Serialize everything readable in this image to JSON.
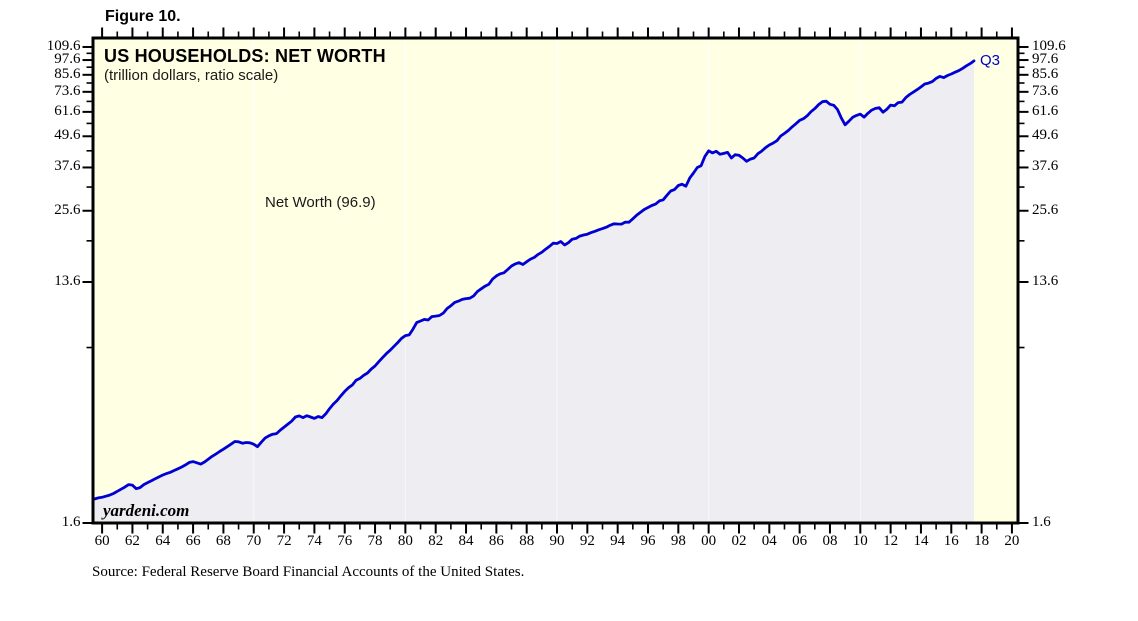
{
  "figure_label": "Figure 10.",
  "source": "Source: Federal Reserve Board Financial Accounts of the United States.",
  "chart": {
    "title": "US HOUSEHOLDS: NET WORTH",
    "subtitle": "(trillion dollars, ratio scale)",
    "annotation": "Net Worth (96.9)",
    "end_label": "Q3",
    "watermark": "yardeni.com"
  },
  "colors": {
    "plot_background": "#FFFFE3",
    "area_fill": "#EEEEF2",
    "line": "#0000D4",
    "frame": "#000000",
    "gridline": "#FFFFFF",
    "end_label_text": "#0000C8"
  },
  "chart_data": {
    "type": "line",
    "title": "US HOUSEHOLDS: NET WORTH",
    "subtitle": "(trillion dollars, ratio scale)",
    "unit": "trillion dollars",
    "scale": "ratio (log)",
    "latest_point": {
      "period": "Q3",
      "value": 96.9
    },
    "shaded_under_curve": true,
    "y_axis": {
      "scale": "log",
      "range": [
        1.6,
        118.7
      ],
      "ticks_major": [
        1.6,
        13.6,
        25.6,
        37.6,
        49.6,
        61.6,
        73.6,
        85.6,
        97.6,
        109.6
      ],
      "ticks_minor": [
        7.6,
        19.6,
        31.6,
        43.6,
        55.6,
        67.6,
        79.6,
        91.6,
        103.6
      ],
      "tick_labels": [
        "1.6",
        "13.6",
        "25.6",
        "37.6",
        "49.6",
        "61.6",
        "73.6",
        "85.6",
        "97.6",
        "109.6"
      ]
    },
    "x_axis": {
      "range": [
        1959.4,
        2020.4
      ],
      "labeled_year_start": 1960,
      "labeled_year_step": 2,
      "labels": [
        "60",
        "62",
        "64",
        "66",
        "68",
        "70",
        "72",
        "74",
        "76",
        "78",
        "80",
        "82",
        "84",
        "86",
        "88",
        "90",
        "92",
        "94",
        "96",
        "98",
        "00",
        "02",
        "04",
        "06",
        "08",
        "10",
        "12",
        "14",
        "16",
        "18",
        "20"
      ]
    },
    "gridlines_vertical_years": [
      1970,
      1980,
      1990,
      2000,
      2010
    ],
    "series": [
      {
        "name": "Net Worth",
        "x_start": 1959.5,
        "x_step": 0.25,
        "values": [
          1.98,
          2.0,
          2.01,
          2.03,
          2.05,
          2.08,
          2.12,
          2.16,
          2.2,
          2.25,
          2.24,
          2.17,
          2.19,
          2.25,
          2.29,
          2.33,
          2.37,
          2.41,
          2.45,
          2.48,
          2.51,
          2.55,
          2.59,
          2.63,
          2.68,
          2.74,
          2.76,
          2.73,
          2.7,
          2.75,
          2.82,
          2.89,
          2.95,
          3.02,
          3.08,
          3.15,
          3.22,
          3.3,
          3.29,
          3.25,
          3.27,
          3.26,
          3.22,
          3.15,
          3.28,
          3.4,
          3.47,
          3.52,
          3.54,
          3.65,
          3.75,
          3.85,
          3.95,
          4.1,
          4.14,
          4.08,
          4.15,
          4.1,
          4.05,
          4.12,
          4.08,
          4.22,
          4.42,
          4.6,
          4.75,
          4.95,
          5.15,
          5.32,
          5.45,
          5.68,
          5.78,
          5.94,
          6.06,
          6.28,
          6.45,
          6.7,
          6.95,
          7.2,
          7.42,
          7.68,
          7.95,
          8.25,
          8.45,
          8.5,
          8.95,
          9.48,
          9.62,
          9.76,
          9.7,
          10.0,
          10.05,
          10.1,
          10.32,
          10.75,
          11.02,
          11.35,
          11.48,
          11.65,
          11.74,
          11.78,
          12.02,
          12.5,
          12.8,
          13.1,
          13.32,
          13.95,
          14.35,
          14.63,
          14.76,
          15.2,
          15.67,
          15.97,
          16.15,
          15.88,
          16.28,
          16.66,
          16.92,
          17.38,
          17.72,
          18.2,
          18.65,
          19.2,
          19.14,
          19.49,
          18.88,
          19.28,
          19.89,
          20.03,
          20.44,
          20.64,
          20.78,
          21.08,
          21.33,
          21.62,
          21.84,
          22.13,
          22.49,
          22.81,
          22.76,
          22.74,
          23.14,
          23.12,
          23.84,
          24.58,
          25.23,
          25.88,
          26.36,
          26.83,
          27.16,
          27.94,
          28.21,
          29.4,
          30.51,
          30.9,
          32.03,
          32.42,
          31.83,
          34.2,
          35.8,
          37.6,
          38.2,
          41.5,
          43.6,
          42.8,
          43.4,
          42.3,
          42.6,
          43.0,
          40.9,
          42.1,
          41.9,
          40.9,
          39.7,
          40.5,
          40.9,
          42.5,
          43.5,
          44.8,
          45.9,
          46.7,
          47.7,
          49.7,
          50.9,
          52.2,
          53.9,
          55.4,
          57.1,
          58.0,
          59.5,
          61.7,
          63.4,
          65.7,
          67.4,
          67.7,
          65.9,
          65.3,
          62.9,
          58.4,
          54.9,
          56.7,
          58.7,
          59.7,
          60.4,
          58.8,
          60.8,
          62.6,
          63.5,
          63.9,
          61.4,
          63.0,
          65.4,
          65.0,
          66.9,
          67.2,
          69.9,
          71.9,
          73.4,
          75.1,
          76.9,
          78.9,
          79.5,
          80.6,
          82.9,
          84.4,
          83.5,
          85.1,
          86.2,
          87.6,
          88.9,
          90.7,
          92.7,
          94.6,
          96.9
        ]
      }
    ]
  }
}
